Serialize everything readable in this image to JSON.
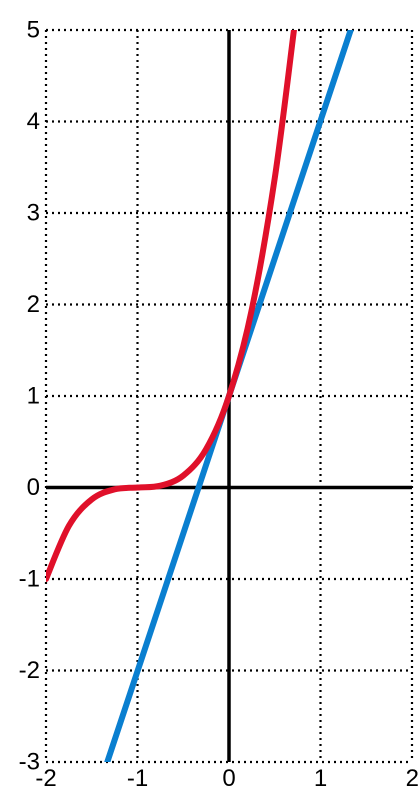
{
  "chart_data": {
    "type": "line",
    "title": "",
    "xlabel": "",
    "ylabel": "",
    "xlim": [
      -2,
      2
    ],
    "ylim": [
      -3,
      5
    ],
    "x_ticks": [
      -2,
      -1,
      0,
      1,
      2
    ],
    "y_ticks": [
      -3,
      -2,
      -1,
      0,
      1,
      2,
      3,
      4,
      5
    ],
    "x_tick_labels": [
      "-2",
      "-1",
      "0",
      "1",
      "2"
    ],
    "y_tick_labels": [
      "-3",
      "-2",
      "-1",
      "0",
      "1",
      "2",
      "3",
      "4",
      "5"
    ],
    "grid": true,
    "grid_style": "dotted",
    "legend": "none",
    "axes_lines": [
      "x=0",
      "y=0"
    ],
    "series": [
      {
        "color": "#e0102a",
        "x": [
          -2,
          -1.75,
          -1.5,
          -1.25,
          -1,
          -0.75,
          -0.5,
          -0.25,
          0,
          0.25,
          0.5,
          0.71
        ],
        "y": [
          -1,
          -0.42,
          -0.13,
          -0.02,
          0,
          0.02,
          0.13,
          0.42,
          1,
          1.95,
          3.38,
          5
        ]
      },
      {
        "color": "#0a7fd0",
        "x": [
          -1.33,
          1.33
        ],
        "y": [
          -3,
          5
        ]
      }
    ]
  }
}
